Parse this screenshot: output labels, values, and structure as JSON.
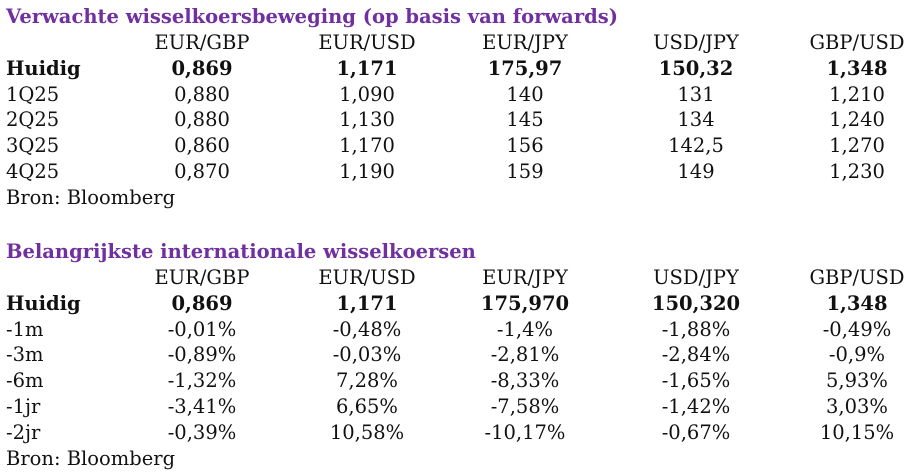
{
  "forwards": {
    "title": "Verwachte wisselkoersbeweging (op basis van forwards)",
    "headers": [
      "EUR/GBP",
      "EUR/USD",
      "EUR/JPY",
      "USD/JPY",
      "GBP/USD"
    ],
    "rows": [
      {
        "label": "Huidig",
        "values": [
          "0,869",
          "1,171",
          "175,97",
          "150,32",
          "1,348"
        ]
      },
      {
        "label": "1Q25",
        "values": [
          "0,880",
          "1,090",
          "140",
          "131",
          "1,210"
        ]
      },
      {
        "label": "2Q25",
        "values": [
          "0,880",
          "1,130",
          "145",
          "134",
          "1,240"
        ]
      },
      {
        "label": "3Q25",
        "values": [
          "0,860",
          "1,170",
          "156",
          "142,5",
          "1,270"
        ]
      },
      {
        "label": "4Q25",
        "values": [
          "0,870",
          "1,190",
          "159",
          "149",
          "1,230"
        ]
      }
    ],
    "source": "Bron: Bloomberg"
  },
  "rates": {
    "title": "Belangrijkste internationale wisselkoersen",
    "headers": [
      "EUR/GBP",
      "EUR/USD",
      "EUR/JPY",
      "USD/JPY",
      "GBP/USD"
    ],
    "rows": [
      {
        "label": "Huidig",
        "values": [
          "0,869",
          "1,171",
          "175,970",
          "150,320",
          "1,348"
        ]
      },
      {
        "label": "-1m",
        "values": [
          "-0,01%",
          "-0,48%",
          "-1,4%",
          "-1,88%",
          "-0,49%"
        ]
      },
      {
        "label": "-3m",
        "values": [
          "-0,89%",
          "-0,03%",
          "-2,81%",
          "-2,84%",
          "-0,9%"
        ]
      },
      {
        "label": "-6m",
        "values": [
          "-1,32%",
          "7,28%",
          "-8,33%",
          "-1,65%",
          "5,93%"
        ]
      },
      {
        "label": "-1jr",
        "values": [
          "-3,41%",
          "6,65%",
          "-7,58%",
          "-1,42%",
          "3,03%"
        ]
      },
      {
        "label": "-2jr",
        "values": [
          "-0,39%",
          "10,58%",
          "-10,17%",
          "-0,67%",
          "10,15%"
        ]
      }
    ],
    "source": "Bron: Bloomberg"
  },
  "colors": {
    "title": "#7030a0",
    "text": "#111111",
    "background": "#ffffff"
  }
}
